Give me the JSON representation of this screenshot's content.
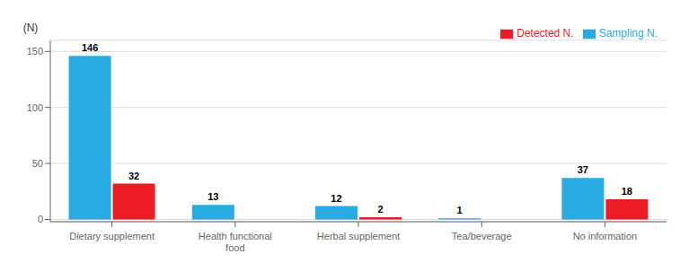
{
  "chart_data": {
    "type": "bar",
    "ylabel": "(N)",
    "categories": [
      "Dietary supplement",
      "Health functional\nfood",
      "Herbal supplement",
      "Tea/beverage",
      "No information"
    ],
    "series": [
      {
        "name": "Sampling N.",
        "color": "#29ABE2",
        "values": [
          146,
          13,
          12,
          1,
          37
        ]
      },
      {
        "name": "Detected N.",
        "color": "#ED1C24",
        "values": [
          32,
          0,
          2,
          0,
          18
        ]
      }
    ],
    "ylim": [
      -2,
      160
    ],
    "yticks": [
      0,
      50,
      100,
      150
    ],
    "grid": true,
    "legend": "upper right",
    "data_labels": true
  }
}
